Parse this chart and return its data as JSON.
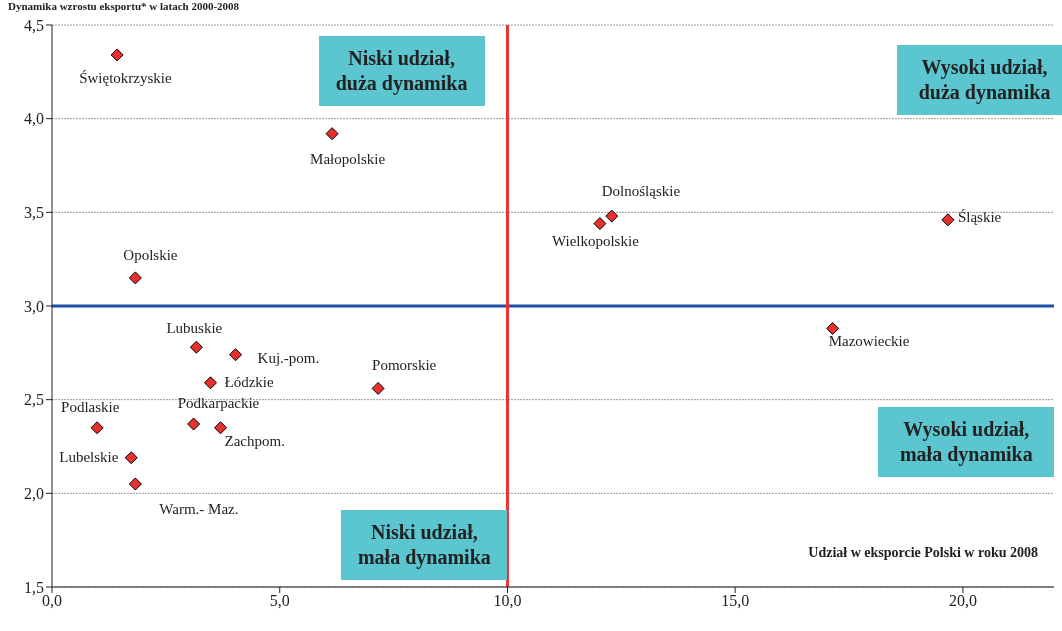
{
  "chart_data": {
    "type": "scatter",
    "title": "Dynamika wzrostu eksportu* w latach 2000-2008",
    "xlabel": "Udział w eksporcie Polski w roku 2008",
    "series": [
      {
        "name": "Świętokrzyskie",
        "color": "#e8302f",
        "x": [
          1.43
        ],
        "values": [
          4.34
        ]
      },
      {
        "name": "Małopolskie",
        "color": "#e8302f",
        "x": [
          6.15
        ],
        "values": [
          3.92
        ]
      },
      {
        "name": "Opolskie",
        "color": "#e8302f",
        "x": [
          1.83
        ],
        "values": [
          3.15
        ]
      },
      {
        "name": "Dolnośląskie",
        "color": "#e8302f",
        "x": [
          12.29
        ],
        "values": [
          3.48
        ]
      },
      {
        "name": "Wielkopolskie",
        "color": "#e8302f",
        "x": [
          12.03
        ],
        "values": [
          3.44
        ]
      },
      {
        "name": "Śląskie",
        "color": "#e8302f",
        "x": [
          19.67
        ],
        "values": [
          3.46
        ]
      },
      {
        "name": "Mazowieckie",
        "color": "#e8302f",
        "x": [
          17.14
        ],
        "values": [
          2.88
        ]
      },
      {
        "name": "Lubuskie",
        "color": "#e8302f",
        "x": [
          3.17
        ],
        "values": [
          2.78
        ]
      },
      {
        "name": "Kuj.-pom.",
        "color": "#e8302f",
        "x": [
          4.03
        ],
        "values": [
          2.74
        ]
      },
      {
        "name": "Łódzkie",
        "color": "#e8302f",
        "x": [
          3.48
        ],
        "values": [
          2.59
        ]
      },
      {
        "name": "Pomorskie",
        "color": "#e8302f",
        "x": [
          7.16
        ],
        "values": [
          2.56
        ]
      },
      {
        "name": "Podlaskie",
        "color": "#e8302f",
        "x": [
          0.99
        ],
        "values": [
          2.35
        ]
      },
      {
        "name": "Podkarpackie",
        "color": "#e8302f",
        "x": [
          3.11
        ],
        "values": [
          2.37
        ]
      },
      {
        "name": "Zachpom.",
        "color": "#e8302f",
        "x": [
          3.7
        ],
        "values": [
          2.35
        ]
      },
      {
        "name": "Lubelskie",
        "color": "#e8302f",
        "x": [
          1.74
        ],
        "values": [
          2.19
        ]
      },
      {
        "name": "Warm.- Maz.",
        "color": "#e8302f",
        "x": [
          1.83
        ],
        "values": [
          2.05
        ]
      }
    ],
    "xlim": [
      0,
      22
    ],
    "xticks": [
      {
        "value": 0,
        "label": "0,0"
      },
      {
        "value": 5,
        "label": "5,0"
      },
      {
        "value": 10,
        "label": "10,0"
      },
      {
        "value": 15,
        "label": "15,0"
      },
      {
        "value": 20,
        "label": "20,0"
      }
    ],
    "ylim": [
      1.5,
      4.5
    ],
    "yticks": [
      {
        "value": 1.5,
        "label": "1,5"
      },
      {
        "value": 2,
        "label": "2,0"
      },
      {
        "value": 2.5,
        "label": "2,5"
      },
      {
        "value": 3,
        "label": "3,0"
      },
      {
        "value": 3.5,
        "label": "3,5"
      },
      {
        "value": 4,
        "label": "4,0"
      },
      {
        "value": 4.5,
        "label": "4,5"
      }
    ],
    "ref_lines": [
      {
        "axis": "y",
        "value": 3,
        "color": "#1f4fa8"
      },
      {
        "axis": "x",
        "value": 10,
        "color": "#ee3333"
      }
    ],
    "annotations": [
      "Niski udział, duża dynamika",
      "Wysoki udział, duża dynamika",
      "Wysoki udział, mała dynamika",
      "Niski udział, mała dynamika"
    ],
    "grid": "y",
    "marker": "diamond",
    "legend": false
  }
}
